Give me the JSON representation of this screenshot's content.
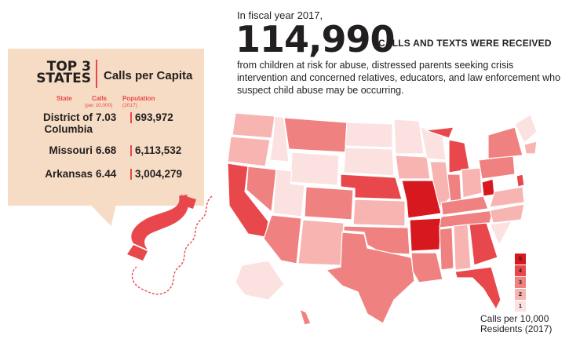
{
  "intro": "In fiscal year 2017,",
  "headline_number": "114,990",
  "headline_suffix": "CALLS AND TEXTS WERE RECEIVED",
  "description": "from children at risk for abuse, distressed parents seeking crisis intervention and concerned relatives, educators, and law enforcement who suspect child abuse may be occurring.",
  "card": {
    "title_line1": "TOP 3",
    "title_line2": "STATES",
    "subtitle": "Calls per Capita",
    "col_state": "State",
    "col_calls": "Calls",
    "col_calls_sub": "(per 10,000)",
    "col_population": "Population",
    "col_population_sub": "(2017)",
    "rows": [
      {
        "state": "District of Columbia",
        "calls": "7.03",
        "population": "693,972"
      },
      {
        "state": "Missouri",
        "calls": "6.68",
        "population": "6,113,532"
      },
      {
        "state": "Arkansas",
        "calls": "6.44",
        "population": "3,004,279"
      }
    ]
  },
  "legend": {
    "levels": [
      "5",
      "4",
      "3",
      "2",
      "1"
    ],
    "colors": {
      "5": "#d7191f",
      "4": "#e8474c",
      "3": "#f08181",
      "2": "#f7b4b1",
      "1": "#fbe1df"
    },
    "caption_line1": "Calls per 10,000",
    "caption_line2": "Residents (2017)"
  }
}
